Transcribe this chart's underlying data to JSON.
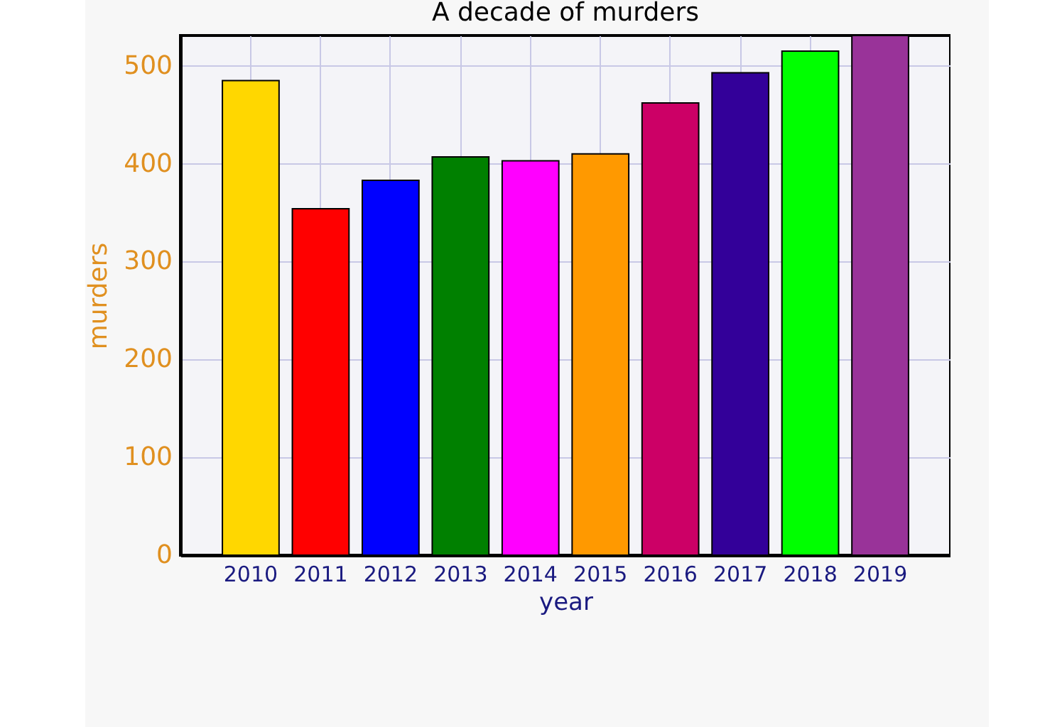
{
  "chart_data": {
    "type": "bar",
    "title": "A decade of murders",
    "xlabel": "year",
    "ylabel": "murders",
    "categories": [
      "2010",
      "2011",
      "2012",
      "2013",
      "2014",
      "2015",
      "2016",
      "2017",
      "2018",
      "2019"
    ],
    "values": [
      485,
      354,
      383,
      407,
      403,
      410,
      462,
      493,
      515,
      531
    ],
    "colors": [
      "#ffd700",
      "#ff0000",
      "#0000ff",
      "#008000",
      "#ff00ff",
      "#ff9900",
      "#cc0066",
      "#330099",
      "#00ff00",
      "#993399"
    ],
    "ylim": [
      0,
      531
    ],
    "yticks": [
      0,
      100,
      200,
      300,
      400,
      500
    ],
    "grid": true
  }
}
